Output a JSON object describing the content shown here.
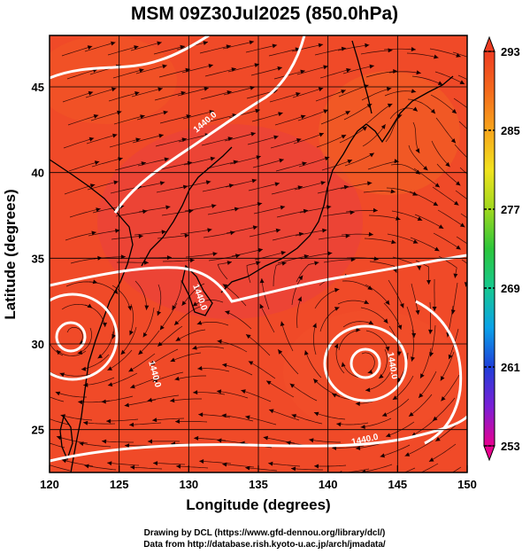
{
  "title": "MSM 09Z30Jul2025 (850.0hPa)",
  "xlabel": "Longitude (degrees)",
  "ylabel": "Latitude  (degrees)",
  "x_ticks": [
    "120",
    "125",
    "130",
    "135",
    "140",
    "145",
    "150"
  ],
  "y_ticks": [
    "25",
    "30",
    "35",
    "40",
    "45"
  ],
  "colorbar": {
    "ticks": [
      "293",
      "285",
      "277",
      "269",
      "261",
      "253"
    ],
    "min": 253,
    "max": 293,
    "colors": [
      "#e9008f",
      "#7a1fd6",
      "#1f3fd8",
      "#0aa2e8",
      "#17c890",
      "#2cc63a",
      "#9fd81e",
      "#f1e21e",
      "#f7a51b",
      "#f46a1c",
      "#ee3c22"
    ]
  },
  "contour_labels": [
    "1440.0",
    "1440.0",
    "1440.0",
    "1440.0",
    "1440.0"
  ],
  "credits": [
    "Drawing by DCL (https://www.gfd-dennou.org/library/dcl/)",
    "Data from http://database.rish.kyoto-u.ac.jp/arch/jmadata/"
  ],
  "map": {
    "lon_range": [
      120,
      150
    ],
    "lat_range": [
      22.5,
      48
    ],
    "field_color": "#f04a28",
    "coast_color": "#000000",
    "contour_color": "#ffffff"
  }
}
